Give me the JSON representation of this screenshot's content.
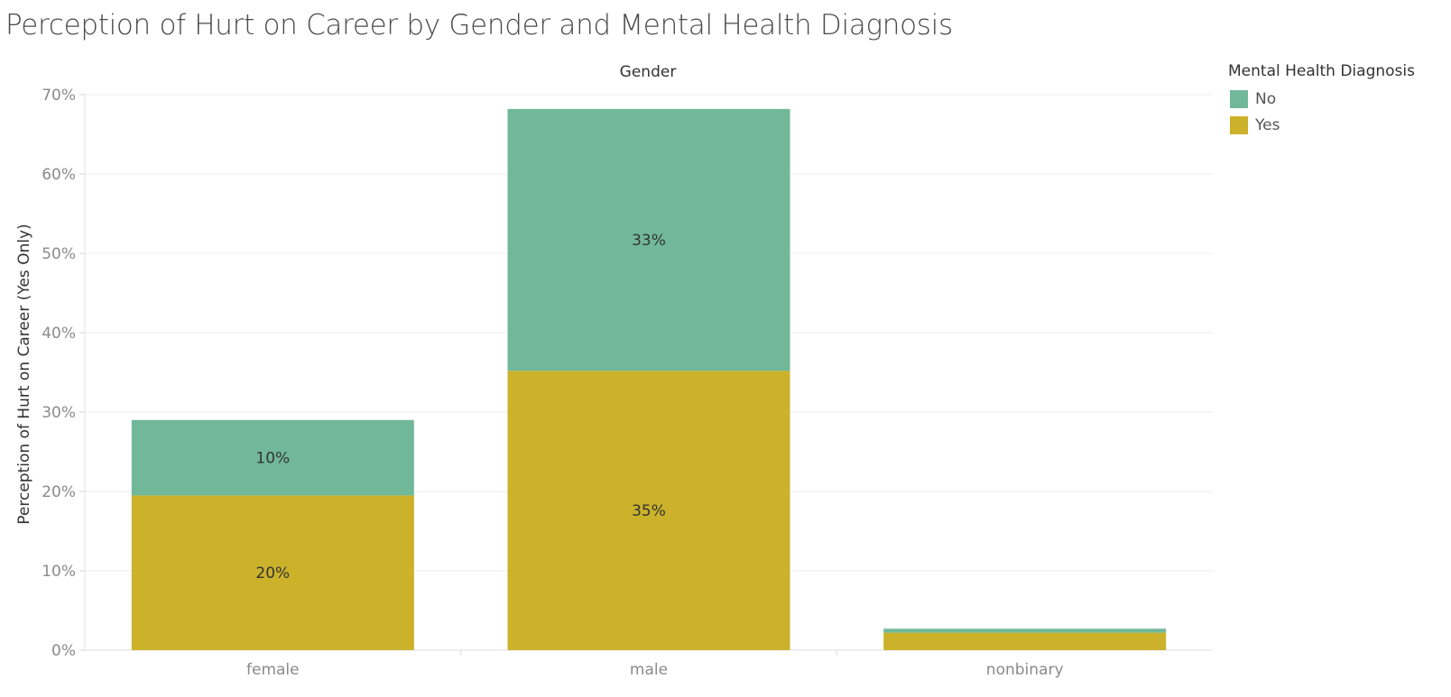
{
  "title": "Perception of Hurt on Career by Gender and Mental Health Diagnosis",
  "legend": {
    "title": "Mental Health Diagnosis",
    "items": [
      {
        "label": "No",
        "color": "#71b89a"
      },
      {
        "label": "Yes",
        "color": "#cbb22a"
      }
    ]
  },
  "chart_data": {
    "type": "bar",
    "stacked": true,
    "column_header": "Gender",
    "ylabel": "Perception of Hurt on Career (Yes Only)",
    "xlabel": "",
    "categories": [
      "female",
      "male",
      "nonbinary"
    ],
    "ylim": [
      0,
      70
    ],
    "yticks": [
      "0%",
      "10%",
      "20%",
      "30%",
      "40%",
      "50%",
      "60%",
      "70%"
    ],
    "grid": true,
    "legend_position": "top-right",
    "series": [
      {
        "name": "Yes",
        "color": "#cbb22a",
        "values": [
          19.5,
          35.2,
          2.2
        ],
        "labels": [
          "20%",
          "35%",
          ""
        ]
      },
      {
        "name": "No",
        "color": "#71b89a",
        "values": [
          9.5,
          33.0,
          0.5
        ],
        "labels": [
          "10%",
          "33%",
          ""
        ]
      }
    ]
  }
}
